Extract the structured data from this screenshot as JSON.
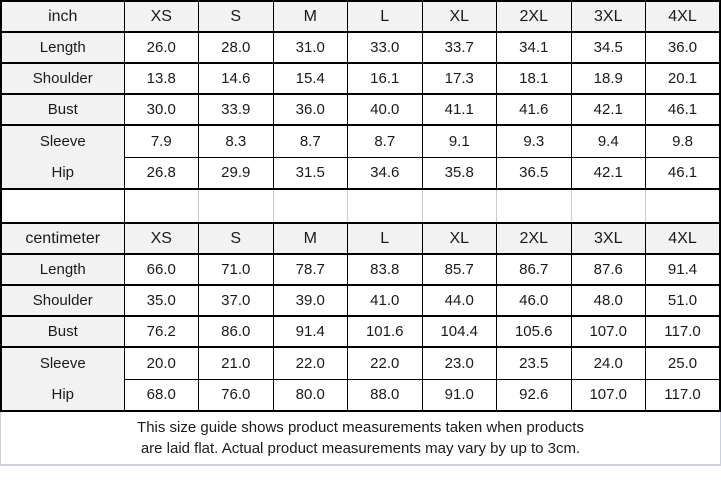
{
  "colors": {
    "header_bg": "#f2f2f2",
    "grid": "#000000",
    "spacer_divider": "#c3ccd9",
    "outer_light": "#c7cfe0",
    "text": "#1a1a1a"
  },
  "size_columns": [
    "XS",
    "S",
    "M",
    "L",
    "XL",
    "2XL",
    "3XL",
    "4XL"
  ],
  "sections": [
    {
      "unit_label": "inch",
      "rows": [
        {
          "label": "Length",
          "values": [
            "26.0",
            "28.0",
            "31.0",
            "33.0",
            "33.7",
            "34.1",
            "34.5",
            "36.0"
          ]
        },
        {
          "label": "Shoulder",
          "values": [
            "13.8",
            "14.6",
            "15.4",
            "16.1",
            "17.3",
            "18.1",
            "18.9",
            "20.1"
          ]
        },
        {
          "label": "Bust",
          "values": [
            "30.0",
            "33.9",
            "36.0",
            "40.0",
            "41.1",
            "41.6",
            "42.1",
            "46.1"
          ]
        },
        {
          "label": "Sleeve",
          "merge_label_with_next": true,
          "values": [
            "7.9",
            "8.3",
            "8.7",
            "8.7",
            "9.1",
            "9.3",
            "9.4",
            "9.8"
          ]
        },
        {
          "label": "Hip",
          "values": [
            "26.8",
            "29.9",
            "31.5",
            "34.6",
            "35.8",
            "36.5",
            "42.1",
            "46.1"
          ]
        }
      ]
    },
    {
      "unit_label": "centimeter",
      "rows": [
        {
          "label": "Length",
          "values": [
            "66.0",
            "71.0",
            "78.7",
            "83.8",
            "85.7",
            "86.7",
            "87.6",
            "91.4"
          ]
        },
        {
          "label": "Shoulder",
          "values": [
            "35.0",
            "37.0",
            "39.0",
            "41.0",
            "44.0",
            "46.0",
            "48.0",
            "51.0"
          ]
        },
        {
          "label": "Bust",
          "values": [
            "76.2",
            "86.0",
            "91.4",
            "101.6",
            "104.4",
            "105.6",
            "107.0",
            "117.0"
          ]
        },
        {
          "label": "Sleeve",
          "merge_label_with_next": true,
          "values": [
            "20.0",
            "21.0",
            "22.0",
            "22.0",
            "23.0",
            "23.5",
            "24.0",
            "25.0"
          ]
        },
        {
          "label": "Hip",
          "values": [
            "68.0",
            "76.0",
            "80.0",
            "88.0",
            "91.0",
            "92.6",
            "107.0",
            "117.0"
          ]
        }
      ]
    }
  ],
  "footer": {
    "line1": "This size guide shows product measurements taken when products",
    "line2": "are laid flat. Actual product measurements may vary by up to 3cm."
  }
}
